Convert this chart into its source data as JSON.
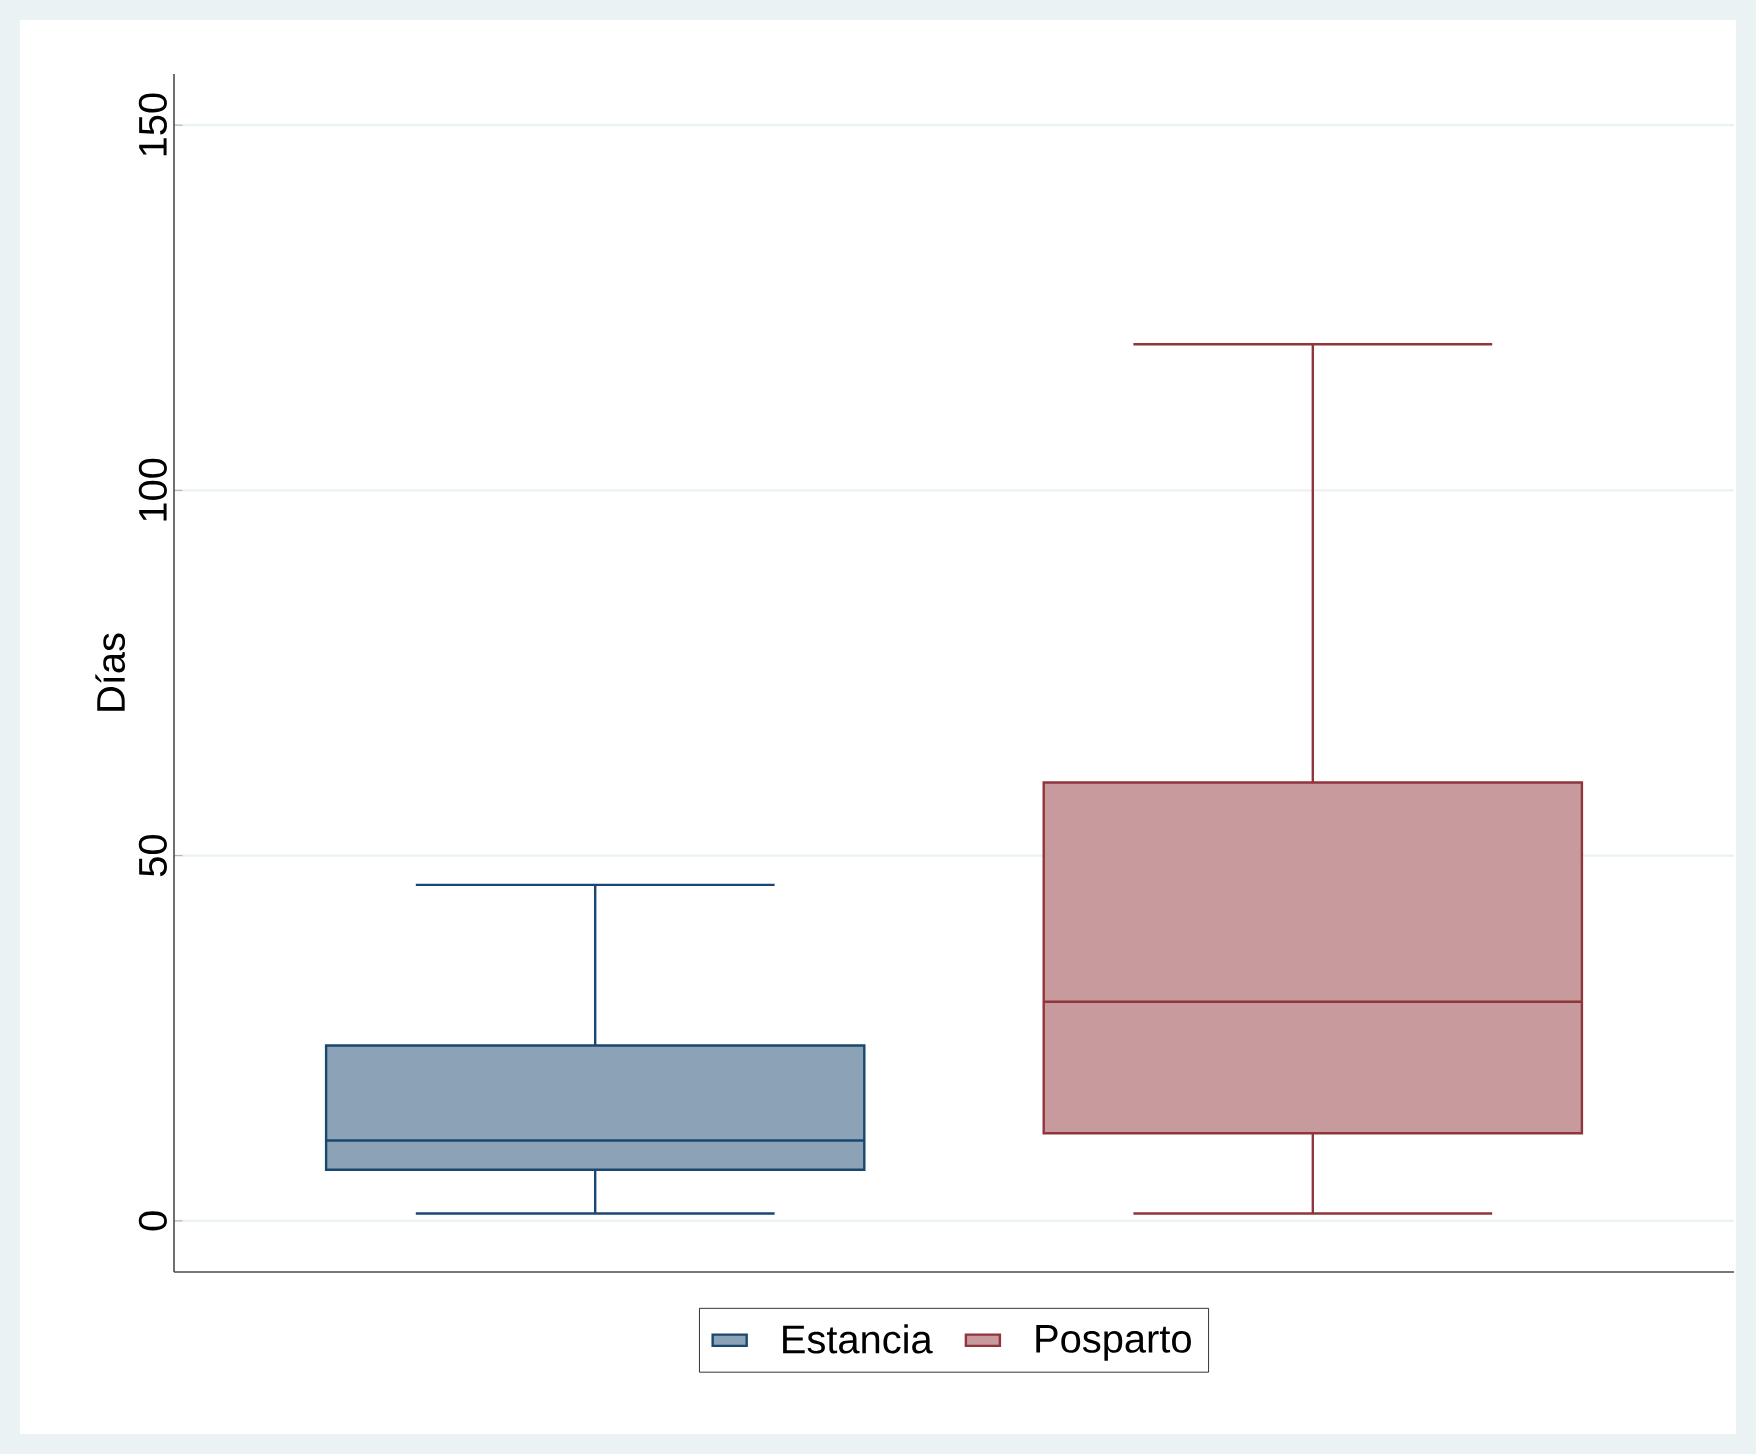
{
  "chart_data": {
    "type": "box",
    "ylabel": "Días",
    "categories": [
      null
    ],
    "series": [
      {
        "name": "Estancia",
        "color": "#1a476f",
        "boxes": [
          {
            "low": 1,
            "q1": 7,
            "median": 11,
            "q3": 24,
            "high": 46
          }
        ]
      },
      {
        "name": "Posparto",
        "color": "#90353b",
        "boxes": [
          {
            "low": 1,
            "q1": 12,
            "median": 30,
            "q3": 60,
            "high": 120
          }
        ]
      }
    ],
    "ylim": [
      -7,
      157
    ],
    "yticks": [
      0,
      50,
      100,
      150
    ],
    "grid": "y",
    "legend": "bottom"
  }
}
